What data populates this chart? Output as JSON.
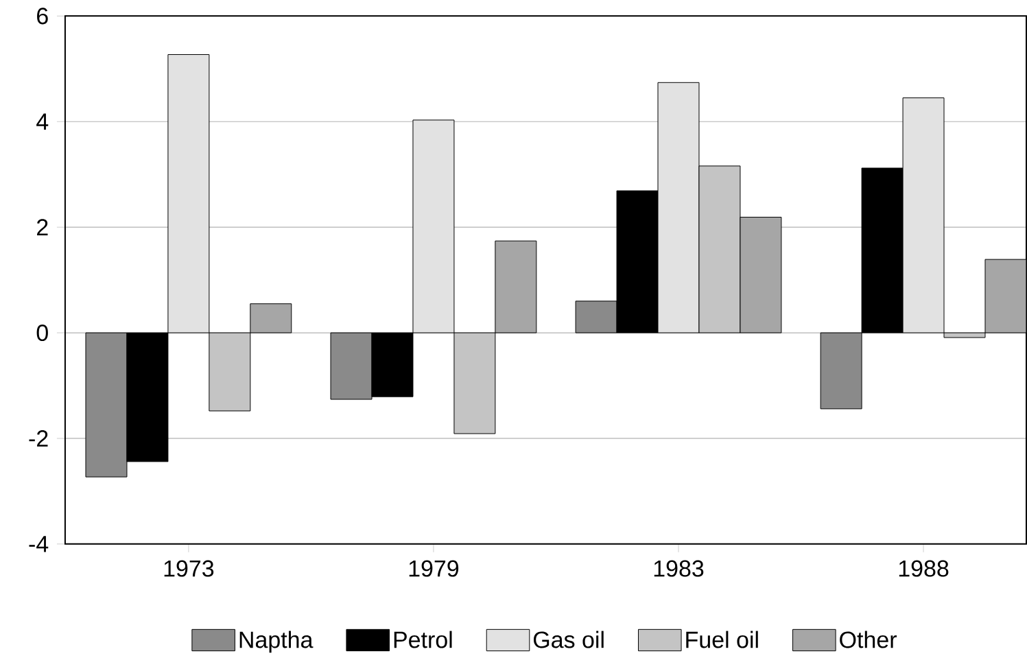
{
  "chart_data": {
    "type": "bar",
    "categories": [
      "1973",
      "1979",
      "1983",
      "1988"
    ],
    "series": [
      {
        "name": "Naptha",
        "color": "#8a8a8a",
        "values": [
          -2.73,
          -1.26,
          0.6,
          -1.44
        ]
      },
      {
        "name": "Petrol",
        "color": "#000000",
        "values": [
          -2.44,
          -1.21,
          2.69,
          3.12
        ]
      },
      {
        "name": "Gas oil",
        "color": "#e2e2e2",
        "values": [
          5.27,
          4.03,
          4.74,
          4.45
        ]
      },
      {
        "name": "Fuel oil",
        "color": "#c4c4c4",
        "values": [
          -1.48,
          -1.91,
          3.16,
          -0.09
        ]
      },
      {
        "name": "Other",
        "color": "#a6a6a6",
        "values": [
          0.55,
          1.74,
          2.19,
          1.39
        ]
      }
    ],
    "ylim": [
      -4,
      6
    ],
    "yticks": [
      -4,
      -2,
      0,
      2,
      4,
      6
    ],
    "grid": "y",
    "legend": "bottom"
  }
}
